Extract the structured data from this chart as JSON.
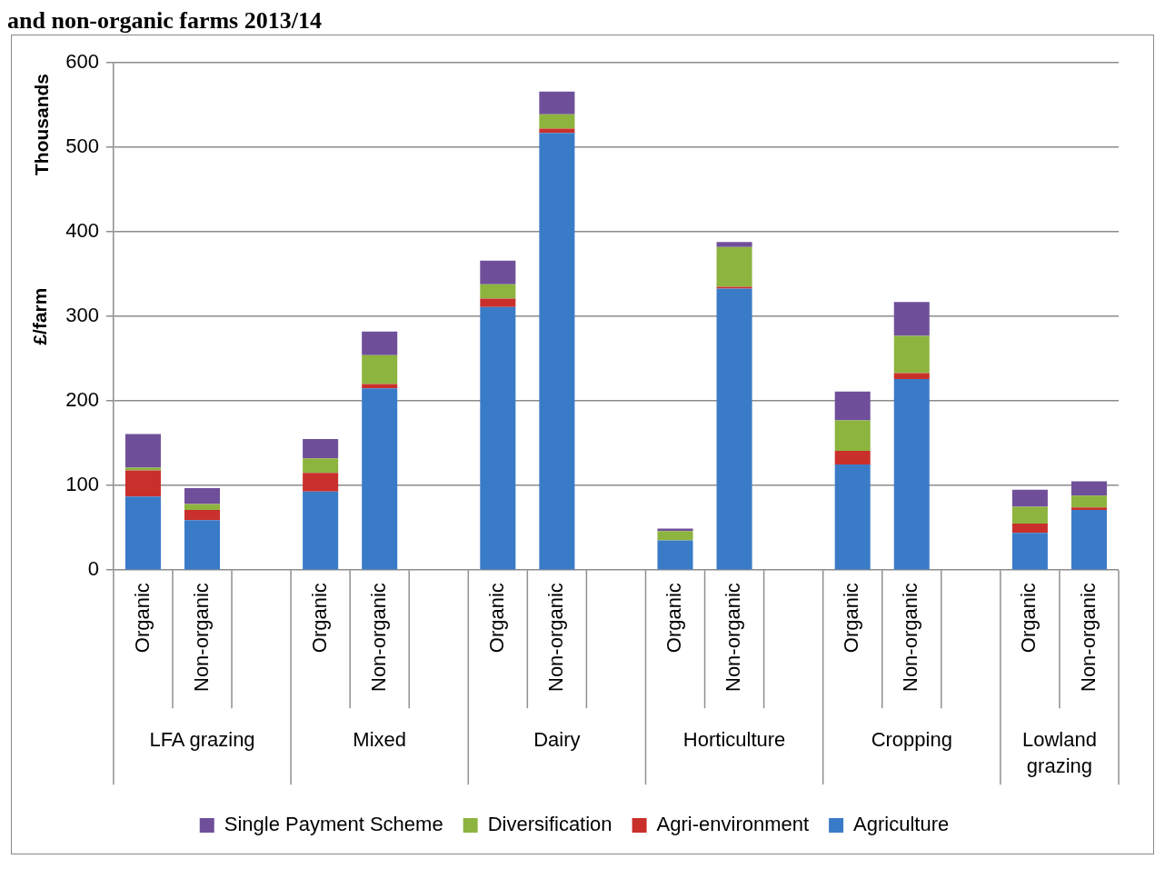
{
  "chart_data": {
    "type": "bar",
    "title": "and non-organic farms 2013/14",
    "ylabel": "£/farm",
    "stacked": true,
    "annotations": [
      "Thousands",
      "LFA grazing",
      "Mixed",
      "Dairy",
      "Horticulture",
      "Cropping",
      "Lowland grazing"
    ],
    "categories": [
      "Organic",
      "Non-organic",
      null,
      "Organic",
      "Non-organic",
      null,
      "Organic",
      "Non-organic",
      null,
      "Organic",
      "Non-organic",
      null,
      "Organic",
      "Non-organic",
      null,
      "Organic",
      "Non-organic"
    ],
    "series": [
      {
        "name": "Agriculture",
        "color": "#3a7bc8",
        "values": [
          87,
          59,
          null,
          93,
          215,
          null,
          311,
          517,
          null,
          35,
          333,
          null,
          125,
          226,
          null,
          44,
          71
        ]
      },
      {
        "name": "Agri-environment",
        "color": "#c9302c",
        "values": [
          31,
          12,
          null,
          22,
          5,
          null,
          10,
          5,
          null,
          0,
          2,
          null,
          16,
          7,
          null,
          11,
          3
        ]
      },
      {
        "name": "Diversification",
        "color": "#8db43e",
        "values": [
          3,
          7,
          null,
          17,
          34,
          null,
          17,
          17,
          null,
          11,
          47,
          null,
          36,
          44,
          null,
          20,
          14
        ]
      },
      {
        "name": "Single Payment Scheme",
        "color": "#6f4f9a",
        "values": [
          40,
          19,
          null,
          23,
          28,
          null,
          28,
          27,
          null,
          3,
          6,
          null,
          34,
          40,
          null,
          20,
          17
        ]
      }
    ],
    "ylim": [
      0,
      600
    ],
    "yticks": [
      0,
      100,
      200,
      300,
      400,
      500,
      600
    ],
    "grid": "y",
    "legend": "bottom"
  }
}
